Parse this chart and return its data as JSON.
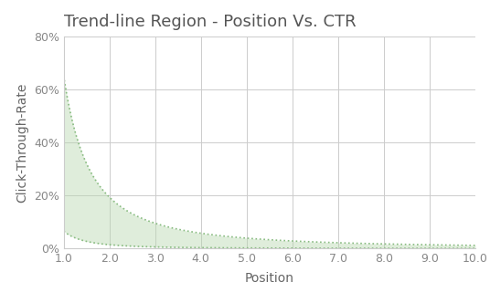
{
  "title": "Trend-line Region - Position Vs. CTR",
  "xlabel": "Position",
  "ylabel": "Click-Through-Rate",
  "x_min": 1.0,
  "x_max": 10.0,
  "y_min": 0.0,
  "y_max": 0.8,
  "x_ticks": [
    1.0,
    2.0,
    3.0,
    4.0,
    5.0,
    6.0,
    7.0,
    8.0,
    9.0,
    10.0
  ],
  "y_ticks": [
    0.0,
    0.2,
    0.4,
    0.6,
    0.8
  ],
  "upper_curve_coeff": 0.65,
  "upper_curve_exp": -1.75,
  "lower_curve_coeff": 0.065,
  "lower_curve_exp": -2.2,
  "fill_color": "#b8d8b0",
  "fill_alpha": 0.45,
  "line_color": "#88bb80",
  "line_style": "dotted",
  "line_width": 1.2,
  "bg_color": "#ffffff",
  "grid_color": "#cccccc",
  "grid_alpha": 1.0,
  "title_fontsize": 13,
  "axis_label_fontsize": 10,
  "tick_fontsize": 9,
  "title_color": "#555555",
  "axis_label_color": "#666666",
  "tick_color": "#888888"
}
